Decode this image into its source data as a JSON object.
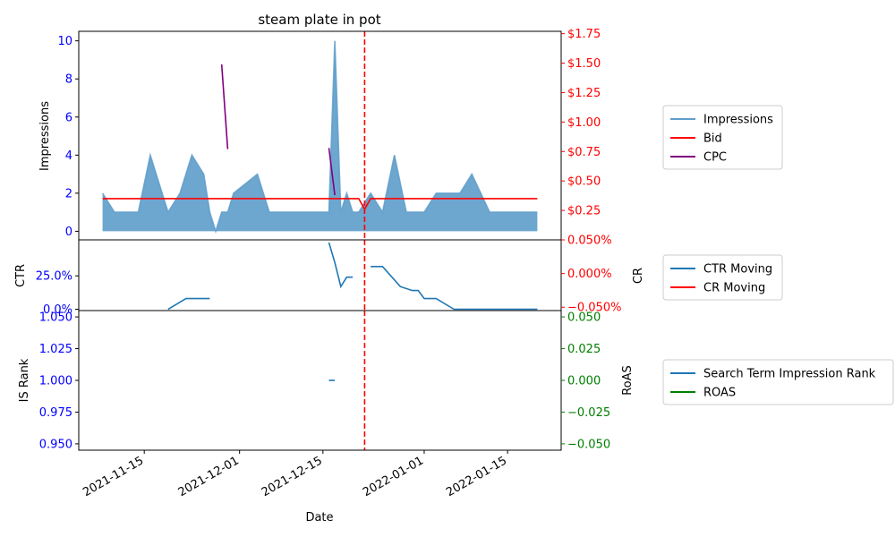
{
  "chart_data": [
    {
      "type": "area",
      "title": "steam plate in pot",
      "xlabel": "Date",
      "ylabel": "Impressions",
      "ylabel_right": "",
      "ylim": [
        -0.45,
        10.5
      ],
      "ylim_right": [
        0.0,
        1.77
      ],
      "y_ticks": [
        0,
        2,
        4,
        6,
        8,
        10
      ],
      "y_ticks_right": [
        0.25,
        0.5,
        0.75,
        1.0,
        1.25,
        1.5,
        1.75
      ],
      "y_tick_labels_right": [
        "$0.25",
        "$0.50",
        "$0.75",
        "$1.00",
        "$1.25",
        "$1.50",
        "$1.75"
      ],
      "series": [
        {
          "name": "Impressions",
          "axis": "left",
          "color": "#5f9ecb",
          "points": [
            [
              "2021-11-08",
              2
            ],
            [
              "2021-11-10",
              1
            ],
            [
              "2021-11-14",
              1
            ],
            [
              "2021-11-16",
              4
            ],
            [
              "2021-11-19",
              1
            ],
            [
              "2021-11-21",
              2
            ],
            [
              "2021-11-23",
              4
            ],
            [
              "2021-11-25",
              3
            ],
            [
              "2021-11-26",
              1
            ],
            [
              "2021-11-27",
              0
            ],
            [
              "2021-11-28",
              1
            ],
            [
              "2021-11-29",
              1
            ],
            [
              "2021-11-30",
              2
            ],
            [
              "2021-12-04",
              3
            ],
            [
              "2021-12-06",
              1
            ],
            [
              "2021-12-16",
              1
            ],
            [
              "2021-12-17",
              10
            ],
            [
              "2021-12-18",
              1
            ],
            [
              "2021-12-19",
              2
            ],
            [
              "2021-12-20",
              1
            ],
            [
              "2021-12-21",
              1
            ],
            [
              "2021-12-22",
              1.5
            ],
            [
              "2021-12-23",
              2
            ],
            [
              "2021-12-25",
              1
            ],
            [
              "2021-12-27",
              4
            ],
            [
              "2021-12-29",
              1
            ],
            [
              "2022-01-01",
              1
            ],
            [
              "2022-01-03",
              2
            ],
            [
              "2022-01-07",
              2
            ],
            [
              "2022-01-09",
              3
            ],
            [
              "2022-01-12",
              1
            ],
            [
              "2022-01-20",
              1
            ]
          ]
        },
        {
          "name": "Bid",
          "axis": "right",
          "color": "#ff0000",
          "points": [
            [
              "2021-11-08",
              0.35
            ],
            [
              "2021-12-20",
              0.35
            ],
            [
              "2021-12-21",
              0.35
            ],
            [
              "2021-12-22",
              0.26
            ],
            [
              "2021-12-23",
              0.35
            ],
            [
              "2022-01-20",
              0.35
            ]
          ]
        },
        {
          "name": "CPC",
          "axis": "right",
          "color": "#800080",
          "segments": [
            [
              [
                "2021-11-28",
                1.49
              ],
              [
                "2021-11-29",
                0.77
              ]
            ],
            [
              [
                "2021-12-16",
                0.78
              ],
              [
                "2021-12-17",
                0.38
              ]
            ]
          ]
        }
      ],
      "vline": {
        "x": "2021-12-22",
        "color": "#ff0000",
        "style": "dashed"
      },
      "legend": {
        "placement": "outside-right",
        "entries": [
          "Impressions",
          "Bid",
          "CPC"
        ]
      }
    },
    {
      "type": "line",
      "ylabel": "CTR",
      "ylabel_right": "CR",
      "ylim": [
        -0.01,
        0.52
      ],
      "ylim_right": [
        -0.055,
        0.05
      ],
      "y_ticks": [
        0,
        0.25
      ],
      "y_tick_labels": [
        "0.0%",
        "25.0%"
      ],
      "y_ticks_right": [
        -0.05,
        0.0,
        0.05
      ],
      "y_tick_labels_right": [
        "−0.050%",
        "0.000%",
        "0.050%"
      ],
      "series": [
        {
          "name": "CTR Moving",
          "axis": "left",
          "color": "#1f77b4",
          "segments": [
            [
              [
                "2021-11-19",
                0.0
              ],
              [
                "2021-11-22",
                0.08
              ],
              [
                "2021-11-26",
                0.08
              ]
            ],
            [
              [
                "2021-12-16",
                0.5
              ],
              [
                "2021-12-17",
                0.35
              ],
              [
                "2021-12-18",
                0.17
              ],
              [
                "2021-12-19",
                0.24
              ],
              [
                "2021-12-20",
                0.24
              ]
            ],
            [
              [
                "2021-12-23",
                0.32
              ],
              [
                "2021-12-25",
                0.32
              ],
              [
                "2021-12-28",
                0.17
              ],
              [
                "2021-12-30",
                0.14
              ],
              [
                "2021-12-31",
                0.14
              ],
              [
                "2022-01-01",
                0.08
              ],
              [
                "2022-01-03",
                0.08
              ],
              [
                "2022-01-06",
                0.0
              ],
              [
                "2022-01-20",
                0.0
              ]
            ]
          ]
        },
        {
          "name": "CR Moving",
          "axis": "right",
          "color": "#ff0000",
          "points": []
        }
      ],
      "vline": {
        "x": "2021-12-22",
        "color": "#ff0000",
        "style": "dashed"
      },
      "legend": {
        "placement": "outside-right",
        "entries": [
          "CTR Moving",
          "CR Moving"
        ]
      }
    },
    {
      "type": "line",
      "ylabel": "IS Rank",
      "ylabel_right": "RoAS",
      "ylim": [
        0.945,
        1.055
      ],
      "ylim_right": [
        -0.055,
        0.055
      ],
      "y_ticks": [
        0.95,
        0.975,
        1.0,
        1.025,
        1.05
      ],
      "y_tick_labels": [
        "0.950",
        "0.975",
        "1.000",
        "1.025",
        "1.050"
      ],
      "y_ticks_right": [
        -0.05,
        -0.025,
        0.0,
        0.025,
        0.05
      ],
      "y_tick_labels_right": [
        "−0.050",
        "−0.025",
        "0.000",
        "0.025",
        "0.050"
      ],
      "series": [
        {
          "name": "Search Term Impression Rank",
          "axis": "left",
          "color": "#1f77b4",
          "points": [
            [
              "2021-12-16",
              1.0
            ],
            [
              "2021-12-17",
              1.0
            ]
          ]
        },
        {
          "name": "ROAS",
          "axis": "right",
          "color": "#008000",
          "points": []
        }
      ],
      "vline": {
        "x": "2021-12-22",
        "color": "#ff0000",
        "style": "dashed"
      },
      "legend": {
        "placement": "outside-right",
        "entries": [
          "Search Term Impression Rank",
          "ROAS"
        ]
      }
    }
  ],
  "x_axis": {
    "xlim": [
      "2021-11-04",
      "2022-01-24"
    ],
    "ticks": [
      "2021-11-15",
      "2021-12-01",
      "2021-12-15",
      "2022-01-01",
      "2022-01-15"
    ],
    "tick_labels": [
      "2021-11-15",
      "2021-12-01",
      "2021-12-15",
      "2022-01-01",
      "2022-01-15"
    ],
    "label": "Date"
  },
  "colors": {
    "left_axis": "#0000ff",
    "right_axis_top": "#ff0000",
    "right_axis_bottom": "#008000"
  }
}
